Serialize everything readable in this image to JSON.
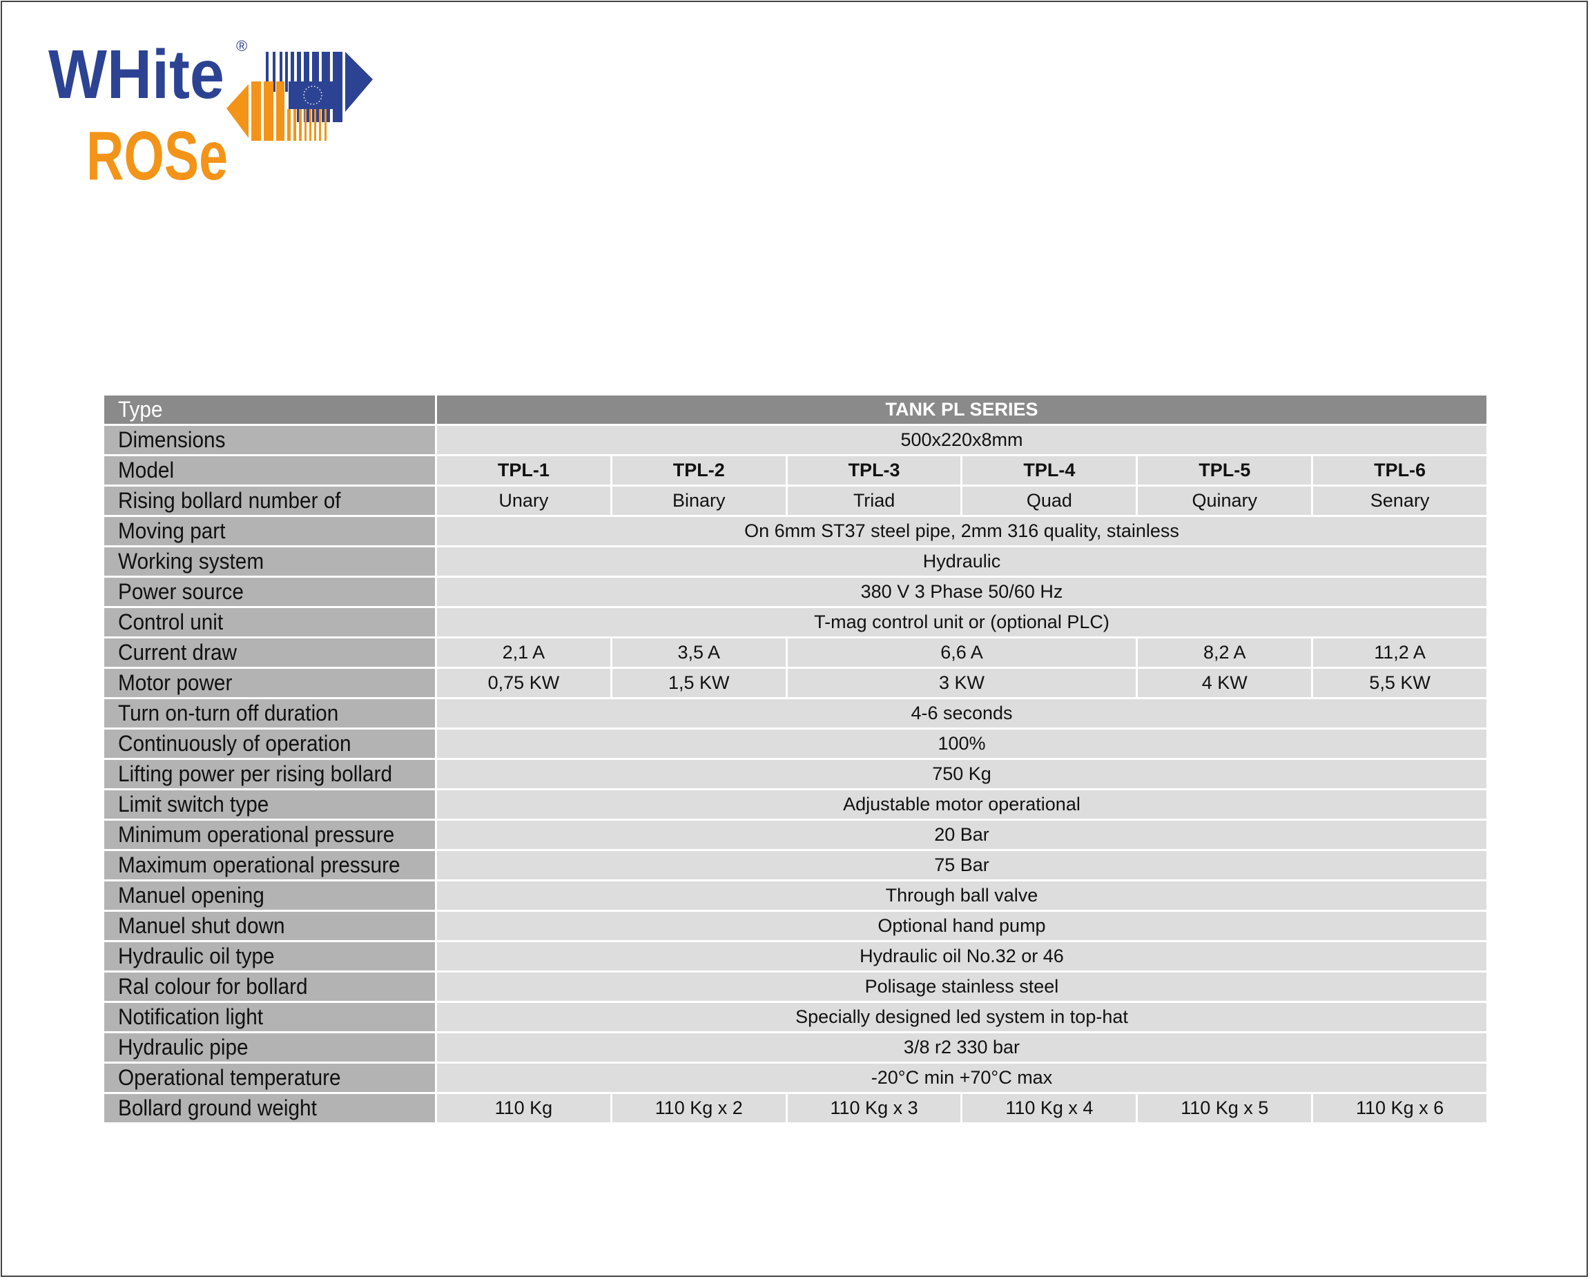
{
  "logo": {
    "line1": "WHite",
    "line2": "ROSe",
    "registered": "®",
    "colors": {
      "blue": "#2c4393",
      "orange": "#f39419"
    }
  },
  "table": {
    "header": {
      "label": "Type",
      "value": "TANK PL SERIES"
    },
    "rows": [
      {
        "label": "Dimensions",
        "cells": [
          {
            "text": "500x220x8mm",
            "span": 6
          }
        ]
      },
      {
        "label": "Model",
        "bold": true,
        "cells": [
          {
            "text": "TPL-1"
          },
          {
            "text": "TPL-2"
          },
          {
            "text": "TPL-3"
          },
          {
            "text": "TPL-4"
          },
          {
            "text": "TPL-5"
          },
          {
            "text": "TPL-6"
          }
        ]
      },
      {
        "label": "Rising bollard number of",
        "cells": [
          {
            "text": "Unary"
          },
          {
            "text": "Binary"
          },
          {
            "text": "Triad"
          },
          {
            "text": "Quad"
          },
          {
            "text": "Quinary"
          },
          {
            "text": "Senary"
          }
        ]
      },
      {
        "label": "Moving part",
        "cells": [
          {
            "text": "On 6mm ST37 steel pipe, 2mm 316 quality, stainless",
            "span": 6
          }
        ]
      },
      {
        "label": "Working system",
        "cells": [
          {
            "text": "Hydraulic",
            "span": 6
          }
        ]
      },
      {
        "label": "Power source",
        "cells": [
          {
            "text": "380 V 3 Phase 50/60 Hz",
            "span": 6
          }
        ]
      },
      {
        "label": "Control unit",
        "cells": [
          {
            "text": "T-mag control unit or (optional PLC)",
            "span": 6
          }
        ]
      },
      {
        "label": "Current draw",
        "cells": [
          {
            "text": "2,1 A"
          },
          {
            "text": "3,5 A"
          },
          {
            "text": "6,6 A",
            "span": 2
          },
          {
            "text": "8,2 A"
          },
          {
            "text": "11,2 A"
          }
        ]
      },
      {
        "label": "Motor power",
        "cells": [
          {
            "text": "0,75 KW"
          },
          {
            "text": "1,5 KW"
          },
          {
            "text": "3 KW",
            "span": 2
          },
          {
            "text": "4 KW"
          },
          {
            "text": "5,5 KW"
          }
        ]
      },
      {
        "label": "Turn on-turn off duration",
        "cells": [
          {
            "text": "4-6 seconds",
            "span": 6
          }
        ]
      },
      {
        "label": "Continuously of operation",
        "cells": [
          {
            "text": "100%",
            "span": 6
          }
        ]
      },
      {
        "label": "Lifting power per rising bollard",
        "cells": [
          {
            "text": "750 Kg",
            "span": 6
          }
        ]
      },
      {
        "label": "Limit switch type",
        "cells": [
          {
            "text": "Adjustable motor operational",
            "span": 6
          }
        ]
      },
      {
        "label": "Minimum operational pressure",
        "cells": [
          {
            "text": "20 Bar",
            "span": 6
          }
        ]
      },
      {
        "label": "Maximum operational pressure",
        "cells": [
          {
            "text": "75 Bar",
            "span": 6
          }
        ]
      },
      {
        "label": "Manuel opening",
        "cells": [
          {
            "text": "Through ball valve",
            "span": 6
          }
        ]
      },
      {
        "label": "Manuel shut down",
        "cells": [
          {
            "text": "Optional hand pump",
            "span": 6
          }
        ]
      },
      {
        "label": "Hydraulic oil type",
        "cells": [
          {
            "text": "Hydraulic oil No.32 or 46",
            "span": 6
          }
        ]
      },
      {
        "label": "Ral colour for bollard",
        "cells": [
          {
            "text": "Polisage stainless steel",
            "span": 6
          }
        ]
      },
      {
        "label": "Notification light",
        "cells": [
          {
            "text": "Specially designed led system in top-hat",
            "span": 6
          }
        ]
      },
      {
        "label": "Hydraulic pipe",
        "cells": [
          {
            "text": "3/8 r2 330 bar",
            "span": 6
          }
        ]
      },
      {
        "label": "Operational temperature",
        "cells": [
          {
            "text": "-20°C min +70°C max",
            "span": 6
          }
        ]
      },
      {
        "label": "Bollard ground weight",
        "cells": [
          {
            "text": "110 Kg"
          },
          {
            "text": "110 Kg x 2"
          },
          {
            "text": "110 Kg x 3"
          },
          {
            "text": "110 Kg x 4"
          },
          {
            "text": "110 Kg x 5"
          },
          {
            "text": "110 Kg x 6"
          }
        ]
      }
    ]
  }
}
